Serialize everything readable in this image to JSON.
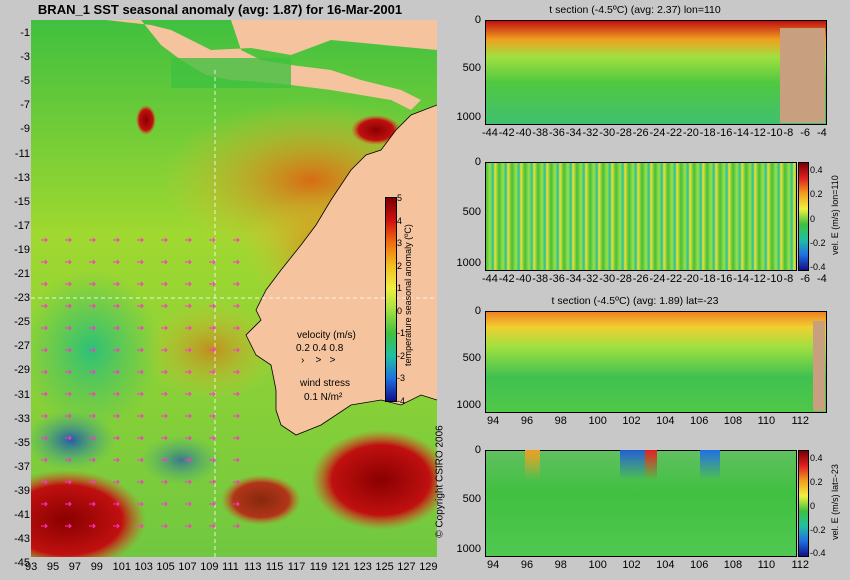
{
  "map": {
    "title": "BRAN_1  SST seasonal anomaly (avg: 1.87) for 16-Mar-2001",
    "lat_ticks": [
      "-1",
      "-3",
      "-5",
      "-7",
      "-9",
      "-11",
      "-13",
      "-15",
      "-17",
      "-19",
      "-21",
      "-23",
      "-25",
      "-27",
      "-29",
      "-31",
      "-33",
      "-35",
      "-37",
      "-39",
      "-41",
      "-43",
      "-45"
    ],
    "lon_ticks": [
      "93",
      "95",
      "97",
      "99",
      "101",
      "103",
      "105",
      "107",
      "109",
      "111",
      "113",
      "115",
      "117",
      "119",
      "121",
      "123",
      "125",
      "127",
      "129"
    ],
    "colorbar": {
      "label": "temperature seasonal anomaly (ºC)",
      "ticks": [
        "5",
        "4",
        "3",
        "2",
        "1",
        "0",
        "-1",
        "-2",
        "-3",
        "-4"
      ]
    },
    "velocity_legend": {
      "title": "velocity (m/s)",
      "values": "0.2 0.4 0.8"
    },
    "wind_legend": {
      "title": "wind stress",
      "value": "0.1 N/m²"
    },
    "copyright": "© Copyright CSIRO 2006",
    "colors": {
      "land": "#f5c39d",
      "arrows": "#ff33cc"
    }
  },
  "panels": [
    {
      "title": "t section (-4.5ºC) (avg: 2.37) lon=110",
      "y_ticks": [
        "0",
        "500",
        "1000"
      ],
      "x_ticks": [
        "-44",
        "-42",
        "-40",
        "-38",
        "-36",
        "-34",
        "-32",
        "-30",
        "-28",
        "-26",
        "-24",
        "-22",
        "-20",
        "-18",
        "-16",
        "-14",
        "-12",
        "-10",
        "-8",
        "-6",
        "-4"
      ],
      "has_colorbar": false
    },
    {
      "title": "",
      "y_ticks": [
        "0",
        "500",
        "1000"
      ],
      "x_ticks": [
        "-44",
        "-42",
        "-40",
        "-38",
        "-36",
        "-34",
        "-32",
        "-30",
        "-28",
        "-26",
        "-24",
        "-22",
        "-20",
        "-18",
        "-16",
        "-14",
        "-12",
        "-10",
        "-8",
        "-6",
        "-4"
      ],
      "has_colorbar": true,
      "cb_label": "vel. E (m/s) lon=110",
      "cb_ticks": [
        "0.4",
        "0.2",
        "0",
        "-0.2",
        "-0.4"
      ]
    },
    {
      "title": "t section (-4.5ºC) (avg: 1.89) lat=-23",
      "y_ticks": [
        "0",
        "500",
        "1000"
      ],
      "x_ticks": [
        "94",
        "96",
        "98",
        "100",
        "102",
        "104",
        "106",
        "108",
        "110",
        "112"
      ],
      "has_colorbar": false
    },
    {
      "title": "",
      "y_ticks": [
        "0",
        "500",
        "1000"
      ],
      "x_ticks": [
        "94",
        "96",
        "98",
        "100",
        "102",
        "104",
        "106",
        "108",
        "110",
        "112"
      ],
      "has_colorbar": true,
      "cb_label": "vel. E (m/s) lat=-23",
      "cb_ticks": [
        "0.4",
        "0.2",
        "0",
        "-0.2",
        "-0.4"
      ]
    }
  ],
  "chart_data": [
    {
      "type": "heatmap",
      "title": "BRAN_1  SST seasonal anomaly (avg: 1.87) for 16-Mar-2001",
      "xlabel": "",
      "ylabel": "",
      "xlim": [
        93,
        130
      ],
      "ylim": [
        -45,
        0
      ],
      "colorbar_range": [
        -4,
        5
      ],
      "colorbar_label": "temperature seasonal anomaly (ºC)"
    },
    {
      "type": "heatmap",
      "title": "t section (-4.5ºC) (avg: 2.37) lon=110",
      "x_range": [
        -45,
        -3
      ],
      "y_range_depth": [
        0,
        1050
      ]
    },
    {
      "type": "heatmap",
      "title": "",
      "colorbar_label": "vel. E (m/s) lon=110",
      "colorbar_range": [
        -0.4,
        0.4
      ],
      "x_range": [
        -45,
        -3
      ],
      "y_range_depth": [
        0,
        1050
      ]
    },
    {
      "type": "heatmap",
      "title": "t section (-4.5ºC) (avg: 1.89) lat=-23",
      "x_range": [
        93,
        114
      ],
      "y_range_depth": [
        0,
        1050
      ]
    },
    {
      "type": "heatmap",
      "title": "",
      "colorbar_label": "vel. E (m/s) lat=-23",
      "colorbar_range": [
        -0.4,
        0.4
      ],
      "x_range": [
        93,
        114
      ],
      "y_range_depth": [
        0,
        1050
      ]
    }
  ]
}
